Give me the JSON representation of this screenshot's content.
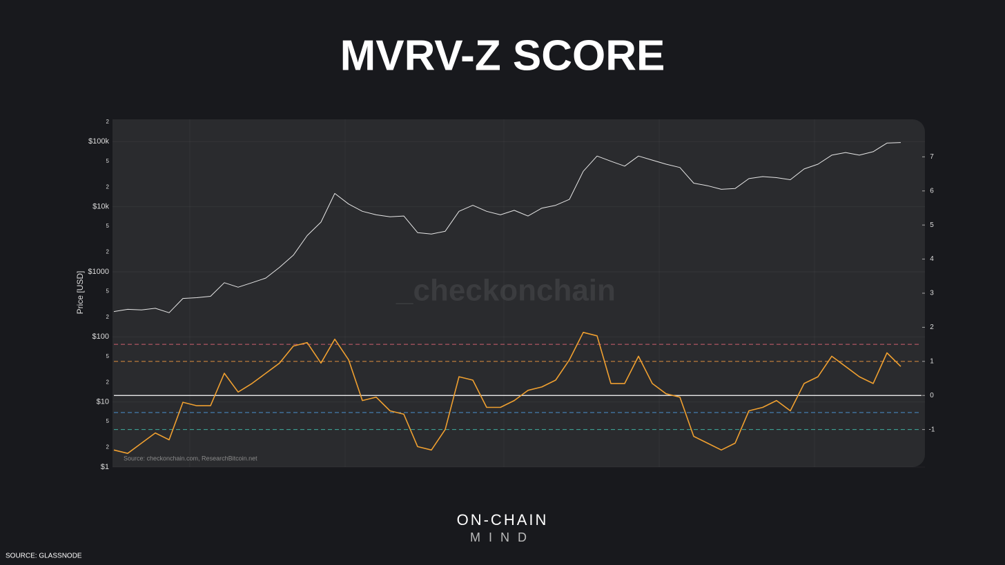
{
  "chart_data": {
    "type": "line",
    "title": "MVRV-Z SCORE",
    "y_label": "Price [USD]",
    "watermark": "_checkonchain",
    "source": "Source: checkonchain.com, ResearchBitcoin.net",
    "log_scale": true,
    "grid": true,
    "categories": [
      null,
      null,
      null,
      null,
      null,
      null,
      null,
      null,
      null,
      null,
      null,
      null,
      null,
      null,
      null,
      null,
      null,
      null,
      null,
      null,
      null,
      null,
      null,
      null,
      null,
      null,
      null,
      null,
      null,
      null,
      null,
      null,
      null,
      null,
      null,
      null,
      null,
      null,
      null,
      null,
      null,
      null,
      null,
      null,
      null,
      null,
      null,
      null,
      null,
      null,
      null,
      null,
      null,
      null,
      null,
      null,
      null,
      null
    ],
    "series": [
      {
        "color": "#e8e8e8",
        "values": [
          245,
          265,
          260,
          275,
          235,
          390,
          400,
          420,
          680,
          580,
          680,
          800,
          1170,
          1800,
          3600,
          5800,
          16000,
          11000,
          8500,
          7500,
          7000,
          7200,
          4000,
          3800,
          4200,
          8500,
          10500,
          8500,
          7500,
          8800,
          7200,
          9500,
          10500,
          13000,
          35000,
          60000,
          50000,
          42000,
          60000,
          52000,
          45000,
          40000,
          23000,
          21000,
          18500,
          19000,
          27000,
          29000,
          28000,
          26000,
          38000,
          45000,
          62000,
          68000,
          62000,
          70000,
          95000,
          97000
        ]
      },
      {
        "color": "#f0a030",
        "axis": "y2",
        "values": [
          -1.6,
          -1.7,
          -1.4,
          -1.1,
          -1.3,
          -0.2,
          -0.3,
          -0.3,
          0.65,
          0.1,
          0.35,
          0.65,
          0.95,
          1.45,
          1.55,
          0.95,
          1.65,
          1.05,
          -0.15,
          -0.05,
          -0.45,
          -0.55,
          -1.5,
          -1.6,
          -1.0,
          0.55,
          0.45,
          -0.35,
          -0.35,
          -0.15,
          0.15,
          0.25,
          0.45,
          1.05,
          1.85,
          1.75,
          0.35,
          0.35,
          1.15,
          0.35,
          0.05,
          -0.05,
          -1.2,
          -1.4,
          -1.6,
          -1.4,
          -0.45,
          -0.35,
          -0.15,
          -0.45,
          0.35,
          0.55,
          1.15,
          0.85,
          0.55,
          0.35,
          1.25,
          0.85
        ]
      }
    ],
    "ylim": [
      1,
      220000
    ],
    "yticks": [
      {
        "value": 1,
        "label": "$1"
      },
      2,
      5,
      {
        "value": 10,
        "label": "$10"
      },
      {
        "value": 20,
        "label": "2"
      },
      {
        "value": 50,
        "label": "5"
      },
      {
        "value": 100,
        "label": "$100"
      },
      {
        "value": 200,
        "label": "2"
      },
      {
        "value": 500,
        "label": "5"
      },
      {
        "value": 1000,
        "label": "$1000"
      },
      {
        "value": 2000,
        "label": "2"
      },
      {
        "value": 5000,
        "label": "5"
      },
      {
        "value": 10000,
        "label": "$10k"
      },
      {
        "value": 20000,
        "label": "2"
      },
      {
        "value": 50000,
        "label": "5"
      },
      {
        "value": 100000,
        "label": "$100k"
      },
      {
        "value": 200000,
        "label": "2"
      }
    ],
    "y2lim": [
      -2.1,
      8.1
    ],
    "y2ticks": [
      -1,
      0,
      1,
      2,
      3,
      4,
      5,
      6,
      7
    ],
    "reference_lines": [
      {
        "value": 1.5,
        "color": "#d0606e"
      },
      {
        "value": 1,
        "color": "#e09040"
      },
      {
        "value": 0,
        "color": "#ffffff"
      },
      {
        "value": -0.5,
        "color": "#4a90d0"
      },
      {
        "value": -1,
        "color": "#40b0a0"
      }
    ]
  },
  "branding": {
    "line1": "ON-CHAIN",
    "line2": "MIND"
  },
  "footer_source": "SOURCE: GLASSNODE"
}
